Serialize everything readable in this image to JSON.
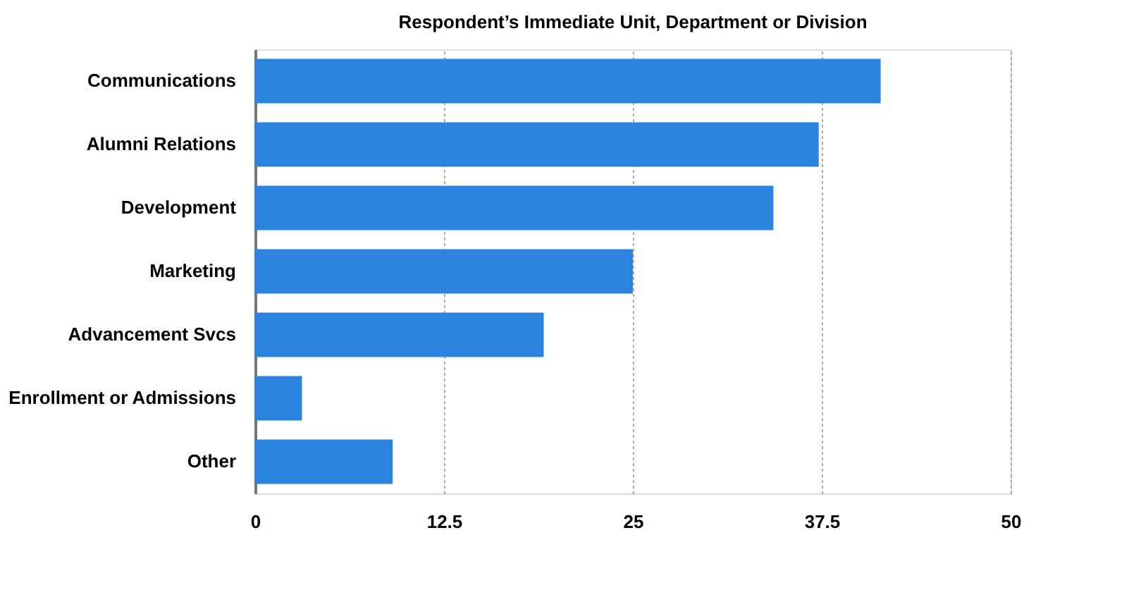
{
  "chart_data": {
    "type": "bar",
    "orientation": "horizontal",
    "title": "Respondent’s Immediate Unit, Department or Division",
    "categories": [
      "Communications",
      "Alumni Relations",
      "Development",
      "Marketing",
      "Advancement Svcs",
      "Enrollment or Admissions",
      "Other"
    ],
    "values": [
      41.4,
      37.3,
      34.3,
      25.0,
      19.1,
      3.1,
      9.1
    ],
    "color": "#2a83df",
    "xlim": [
      0,
      50
    ],
    "xticks": [
      0,
      12.5,
      25,
      37.5,
      50
    ],
    "grid": "x"
  }
}
